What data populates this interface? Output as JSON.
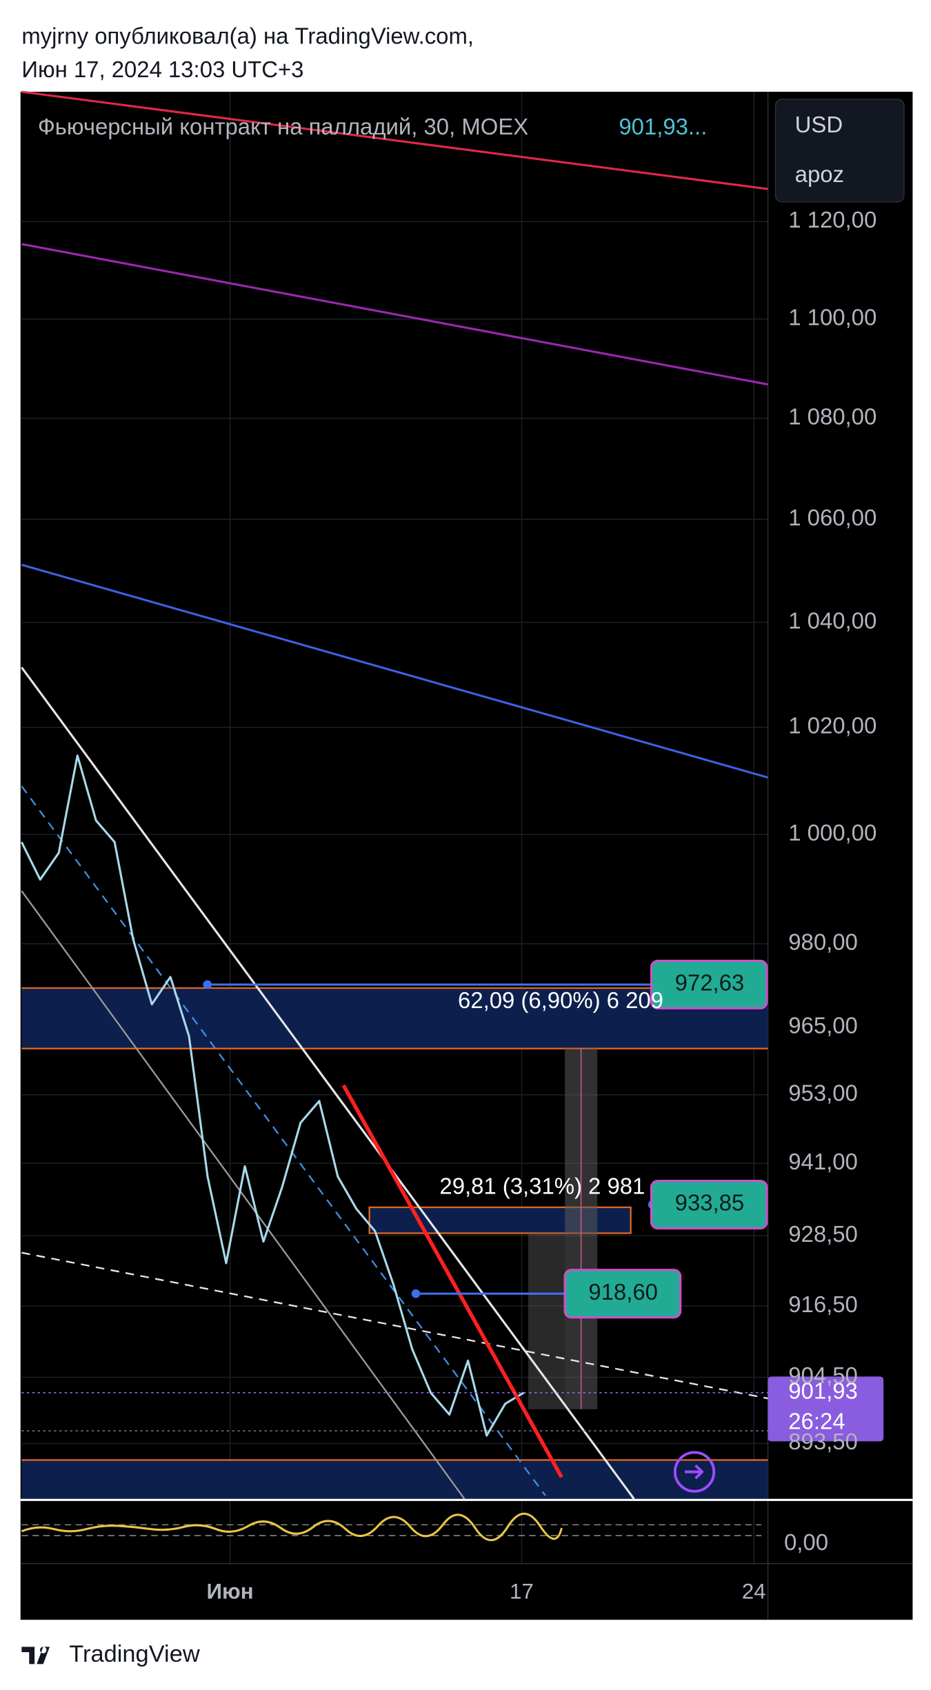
{
  "header": {
    "line1": "myjrny опубликовал(а) на TradingView.com,",
    "line2": "Июн 17, 2024 13:03 UTC+3"
  },
  "chart_data": {
    "type": "line",
    "title": "Фьючерсный контракт на палладий, 30, MOEX",
    "title_price": "901,93...",
    "currency": "USD",
    "account": "apoz",
    "log_scale": true,
    "grid": true,
    "color": "#a8d8ea",
    "values": [
      998.6,
      991.7,
      996.6,
      1014.7,
      1002.6,
      998.6,
      980.8,
      969.1,
      974.0,
      963.4,
      938.7,
      923.8,
      940.5,
      927.5,
      936.8,
      948.1,
      951.9,
      938.7,
      933.1,
      929.3,
      920.1,
      909.2,
      901.9,
      898.3,
      907.3,
      894.8,
      900.1,
      901.93
    ],
    "ylim": [
      884.4,
      1147.2
    ],
    "yticks": [
      {
        "value": 1120,
        "label": "1 120,00"
      },
      {
        "value": 1100,
        "label": "1 100,00"
      },
      {
        "value": 1080,
        "label": "1 080,00"
      },
      {
        "value": 1060,
        "label": "1 060,00"
      },
      {
        "value": 1040,
        "label": "1 040,00"
      },
      {
        "value": 1020,
        "label": "1 020,00"
      },
      {
        "value": 1000,
        "label": "1 000,00"
      },
      {
        "value": 980,
        "label": "980,00"
      },
      {
        "value": 965,
        "label": "965,00"
      },
      {
        "value": 953,
        "label": "953,00"
      },
      {
        "value": 941,
        "label": "941,00"
      },
      {
        "value": 928.5,
        "label": "928,50"
      },
      {
        "value": 916.5,
        "label": "916,50"
      },
      {
        "value": 904.5,
        "label": "904,50"
      },
      {
        "value": 893.5,
        "label": "893,50"
      }
    ],
    "time_labels": [
      "Июн",
      "17",
      "24"
    ],
    "price_tags": [
      {
        "value": 972.63,
        "label": "972,63"
      },
      {
        "value": 933.85,
        "label": "933,85"
      },
      {
        "value": 918.6,
        "label": "918,60"
      }
    ],
    "last_price": {
      "value": 901.93,
      "label": "901,93"
    },
    "countdown": "26:24",
    "measurements": [
      "62,09 (6,90%) 6 209",
      "29,81 (3,31%) 2 981"
    ],
    "oscillator_tick": {
      "value": 0,
      "label": "0,00"
    }
  },
  "footer": {
    "brand": "TradingView"
  }
}
